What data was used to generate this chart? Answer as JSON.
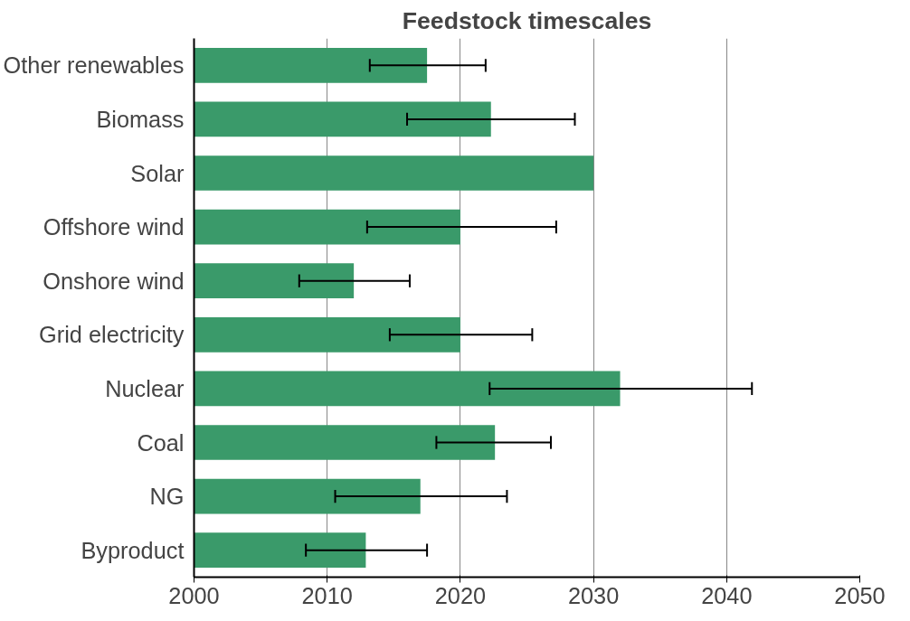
{
  "chart_data": {
    "type": "bar",
    "orientation": "horizontal",
    "title": "Feedstock timescales",
    "categories": [
      "Other renewables",
      "Biomass",
      "Solar",
      "Offshore wind",
      "Onshore wind",
      "Grid electricity",
      "Nuclear",
      "Coal",
      "NG",
      "Byproduct"
    ],
    "values": [
      2017.5,
      2022.3,
      2030,
      2020,
      2012,
      2020,
      2032,
      2022.6,
      2017,
      2012.9
    ],
    "errors": [
      [
        2013.2,
        2021.9
      ],
      [
        2016.0,
        2028.6
      ],
      null,
      [
        2013.0,
        2027.2
      ],
      [
        2007.9,
        2016.2
      ],
      [
        2014.7,
        2025.4
      ],
      [
        2022.2,
        2041.9
      ],
      [
        2018.2,
        2026.8
      ],
      [
        2010.6,
        2023.5
      ],
      [
        2008.4,
        2017.5
      ]
    ],
    "color": "#3a9a6a",
    "xlim": [
      2000,
      2050
    ],
    "xticks": [
      2000,
      2010,
      2020,
      2030,
      2040,
      2050
    ],
    "grid": "x"
  }
}
